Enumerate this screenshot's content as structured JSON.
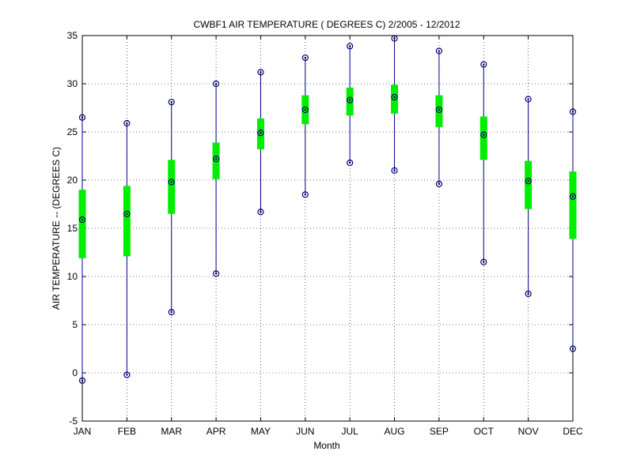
{
  "chart_data": {
    "type": "boxplot-range",
    "title": "CWBF1  AIR TEMPERATURE ( DEGREES C) 2/2005 - 12/2012",
    "xlabel": "Month",
    "ylabel": "AIR TEMPERATURE -- (DEGREES C)",
    "ylim": [
      -5,
      35
    ],
    "yticks": [
      -5,
      0,
      5,
      10,
      15,
      20,
      25,
      30,
      35
    ],
    "grid": true,
    "categories": [
      "JAN",
      "FEB",
      "MAR",
      "APR",
      "MAY",
      "JUN",
      "JUL",
      "AUG",
      "SEP",
      "OCT",
      "NOV",
      "DEC"
    ],
    "series": [
      {
        "name": "min",
        "values": [
          -0.8,
          -0.2,
          6.3,
          10.3,
          16.7,
          18.5,
          21.8,
          21.0,
          19.6,
          11.5,
          8.2,
          2.5
        ]
      },
      {
        "name": "q1",
        "values": [
          11.9,
          12.1,
          16.5,
          20.1,
          23.2,
          25.8,
          26.7,
          26.9,
          25.5,
          22.1,
          17.0,
          13.9
        ]
      },
      {
        "name": "median",
        "values": [
          15.9,
          16.5,
          19.8,
          22.2,
          24.9,
          27.3,
          28.3,
          28.6,
          27.3,
          24.7,
          19.9,
          18.3
        ]
      },
      {
        "name": "q3",
        "values": [
          19.0,
          19.4,
          22.1,
          23.9,
          26.4,
          28.8,
          29.6,
          29.9,
          28.8,
          26.6,
          22.0,
          20.9
        ]
      },
      {
        "name": "max",
        "values": [
          26.5,
          25.9,
          28.1,
          30.0,
          31.2,
          32.7,
          33.9,
          34.7,
          33.4,
          32.0,
          28.4,
          27.1
        ]
      }
    ],
    "colors": {
      "whisker": "#00008B",
      "box": "#00EE00",
      "marker": "#000080",
      "grid": "#000000",
      "axis": "#000000"
    }
  }
}
